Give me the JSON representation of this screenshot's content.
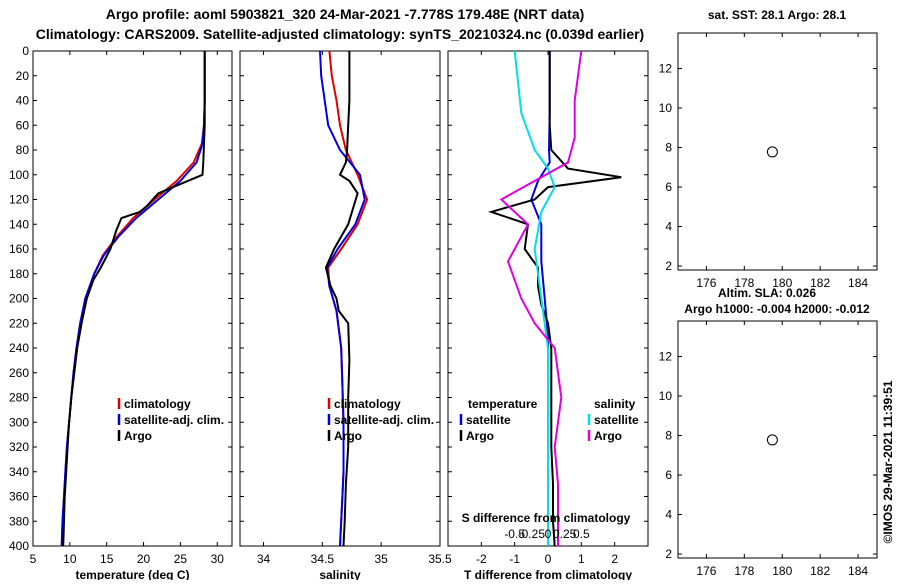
{
  "titles": {
    "line1": "Argo profile: aoml 5903821_320 24-Mar-2021 -7.778S 179.48E (NRT data)",
    "line2": "Climatology: CARS2009. Satellite-adjusted climatology: synTS_20210324.nc (0.039d earlier)"
  },
  "colors": {
    "climatology": "#e00000",
    "satellite": "#0000e0",
    "argo": "#000000",
    "salinity_satellite": "#00e0e0",
    "salinity_argo": "#e000e0",
    "map_green": "#22cc22",
    "map_light_green": "#88e044"
  },
  "right_panels": {
    "top_title": "sat. SST: 28.1  Argo: 28.1",
    "mid_title": "Altim. SLA: 0.026",
    "bottom_title": "Argo h1000: -0.004 h2000: -0.012"
  },
  "timestamp": "©IMOS 29-Mar-2021 11:39:51",
  "chart_data": [
    {
      "type": "line",
      "id": "temperature_profile",
      "xlabel": "temperature (deg C)",
      "ylabel": "",
      "xlim": [
        5,
        32
      ],
      "ylim": [
        400,
        0
      ],
      "xticks": [
        "5",
        "10",
        "15",
        "20",
        "25",
        "30"
      ],
      "yticks": [
        "0",
        "20",
        "40",
        "60",
        "80",
        "100",
        "120",
        "140",
        "160",
        "180",
        "200",
        "220",
        "240",
        "260",
        "280",
        "300",
        "320",
        "340",
        "360",
        "380",
        "400"
      ],
      "legend": [
        "climatology",
        "satellite-adj. clim.",
        "Argo"
      ],
      "series": [
        {
          "name": "climatology",
          "color": "#e00000",
          "x": [
            28.3,
            28.3,
            28.2,
            27.9,
            26.8,
            24.5,
            21.5,
            18.6,
            16.4,
            14.5,
            13.3,
            12.1,
            11.4,
            10.9,
            10.5,
            10.2,
            9.9,
            9.6,
            9.4,
            9.2,
            9.0,
            8.9
          ],
          "y": [
            0,
            40,
            60,
            75,
            90,
            105,
            120,
            135,
            150,
            165,
            180,
            200,
            220,
            240,
            260,
            280,
            300,
            320,
            340,
            360,
            380,
            400
          ]
        },
        {
          "name": "satellite-adj. clim.",
          "color": "#0000e0",
          "x": [
            28.3,
            28.3,
            28.2,
            28.0,
            27.2,
            25.0,
            22.0,
            19.0,
            16.6,
            14.6,
            13.3,
            12.1,
            11.4,
            10.9,
            10.5,
            10.2,
            9.9,
            9.6,
            9.4,
            9.2,
            9.0,
            8.9
          ],
          "y": [
            0,
            40,
            60,
            75,
            90,
            105,
            120,
            135,
            150,
            165,
            180,
            200,
            220,
            240,
            260,
            280,
            300,
            320,
            340,
            360,
            380,
            400
          ]
        },
        {
          "name": "Argo",
          "color": "#000000",
          "x": [
            28.3,
            28.3,
            28.1,
            28.0,
            26.0,
            22.0,
            20.5,
            19.5,
            17.0,
            16.3,
            15.5,
            14.2,
            13.2,
            12.3,
            11.6,
            11.0,
            10.6,
            10.2,
            9.9,
            9.7,
            9.5,
            9.3,
            9.2,
            9.1
          ],
          "y": [
            0,
            60,
            90,
            100,
            105,
            115,
            125,
            130,
            135,
            145,
            160,
            175,
            185,
            200,
            220,
            240,
            260,
            280,
            300,
            320,
            340,
            360,
            380,
            400
          ]
        }
      ]
    },
    {
      "type": "line",
      "id": "salinity_profile",
      "xlabel": "salinity",
      "xlim": [
        33.8,
        35.5
      ],
      "ylim": [
        400,
        0
      ],
      "xticks": [
        "34",
        "34.5",
        "35",
        "35.5"
      ],
      "legend": [
        "climatology",
        "satellite-adj. clim.",
        "Argo"
      ],
      "series": [
        {
          "name": "climatology",
          "color": "#e00000",
          "x": [
            34.56,
            34.58,
            34.62,
            34.65,
            34.7,
            34.8,
            34.88,
            34.8,
            34.66,
            34.55,
            34.56,
            34.62,
            34.66,
            34.67,
            34.68,
            34.68,
            34.68,
            34.67,
            34.66,
            34.65
          ],
          "y": [
            0,
            20,
            40,
            60,
            80,
            100,
            120,
            140,
            160,
            175,
            190,
            210,
            240,
            270,
            300,
            320,
            340,
            360,
            380,
            400
          ]
        },
        {
          "name": "satellite-adj. clim.",
          "color": "#0000e0",
          "x": [
            34.48,
            34.49,
            34.52,
            34.55,
            34.65,
            34.82,
            34.86,
            34.78,
            34.63,
            34.54,
            34.56,
            34.62,
            34.66,
            34.67,
            34.68,
            34.68,
            34.68,
            34.67,
            34.66,
            34.65
          ],
          "y": [
            0,
            20,
            40,
            60,
            80,
            100,
            120,
            140,
            160,
            175,
            190,
            210,
            240,
            270,
            300,
            320,
            340,
            360,
            380,
            400
          ]
        },
        {
          "name": "Argo",
          "color": "#000000",
          "x": [
            34.73,
            34.73,
            34.72,
            34.71,
            34.7,
            34.65,
            34.73,
            34.8,
            34.72,
            34.6,
            34.53,
            34.57,
            34.62,
            34.64,
            34.72,
            34.73,
            34.72,
            34.72,
            34.7,
            34.69,
            34.68
          ],
          "y": [
            0,
            40,
            60,
            80,
            90,
            100,
            105,
            115,
            140,
            160,
            175,
            190,
            200,
            210,
            220,
            250,
            280,
            320,
            350,
            380,
            400
          ]
        }
      ]
    },
    {
      "type": "line",
      "id": "difference_profile",
      "xlabel": "T difference from climatology",
      "xlim": [
        -3,
        3
      ],
      "ylim": [
        400,
        0
      ],
      "xticks": [
        "-2",
        "-1",
        "0",
        "1",
        "2"
      ],
      "top_xlabel": "S difference from climatology",
      "top_xticks": [
        "-0.5",
        "-0.25",
        "0",
        "0.25",
        "0.5"
      ],
      "legend": [
        "temperature",
        "satellite",
        "Argo",
        "salinity",
        "satellite",
        "Argo"
      ],
      "series": [
        {
          "name": "T satellite",
          "color": "#0000e0",
          "x": [
            0.05,
            0.05,
            0.03,
            0.05,
            -0.3,
            -0.5,
            -0.2,
            -0.2,
            -0.1,
            0.0,
            0.0,
            0.0,
            0.0,
            0.0,
            0.0,
            0.0
          ],
          "y": [
            0,
            50,
            80,
            90,
            105,
            120,
            140,
            170,
            200,
            230,
            260,
            290,
            320,
            350,
            380,
            400
          ]
        },
        {
          "name": "T Argo",
          "color": "#000000",
          "x": [
            0.05,
            0.05,
            0.1,
            0.6,
            2.2,
            0.0,
            -0.4,
            -1.7,
            -0.6,
            -0.7,
            -0.3,
            -0.3,
            -0.2,
            0.0,
            0.1,
            0.1,
            0.1,
            0.15,
            0.15,
            0.2
          ],
          "y": [
            0,
            60,
            80,
            95,
            102,
            110,
            120,
            130,
            140,
            160,
            175,
            190,
            205,
            220,
            240,
            280,
            320,
            350,
            380,
            400
          ]
        },
        {
          "name": "S satellite",
          "color": "#00e0e0",
          "x": [
            -0.5,
            -0.4,
            -0.2,
            0.0,
            0.1,
            -0.1,
            -0.2,
            -0.1,
            0.0,
            0.0,
            0.0,
            0.0,
            0.0
          ],
          "y": [
            0,
            50,
            80,
            95,
            110,
            130,
            160,
            200,
            240,
            280,
            320,
            360,
            400
          ]
        },
        {
          "name": "S Argo",
          "color": "#e000e0",
          "x": [
            0.5,
            0.4,
            0.4,
            0.3,
            -0.7,
            -0.3,
            -0.6,
            -0.4,
            -0.2,
            0.1,
            0.2,
            0.1,
            0.15,
            0.15,
            0.15
          ],
          "y": [
            0,
            40,
            70,
            90,
            120,
            140,
            170,
            200,
            220,
            240,
            280,
            320,
            350,
            380,
            400
          ]
        }
      ]
    },
    {
      "type": "heatmap",
      "id": "sst_map",
      "title": "sat. SST: 28.1  Argo: 28.1",
      "xlim": [
        174.5,
        185
      ],
      "ylim": [
        1.8,
        13.8
      ],
      "xticks": [
        "176",
        "178",
        "180",
        "182",
        "184"
      ],
      "yticks": [
        "2",
        "4",
        "6",
        "8",
        "10",
        "12"
      ],
      "data_extent": {
        "x": [
          174.5,
          180
        ],
        "y": [
          1.8,
          10.2
        ]
      },
      "marker": {
        "lon": 179.48,
        "lat": 7.778
      }
    },
    {
      "type": "heatmap",
      "id": "sla_map",
      "title": "Argo h1000: -0.004 h2000: -0.012",
      "xlim": [
        174.5,
        185
      ],
      "ylim": [
        1.8,
        13.8
      ],
      "xticks": [
        "176",
        "178",
        "180",
        "182",
        "184"
      ],
      "yticks": [
        "2",
        "4",
        "6",
        "8",
        "10",
        "12"
      ],
      "data_extent": {
        "x": [
          174.5,
          180
        ],
        "y": [
          1.8,
          10.2
        ]
      },
      "marker": {
        "lon": 179.48,
        "lat": 7.778
      }
    }
  ]
}
